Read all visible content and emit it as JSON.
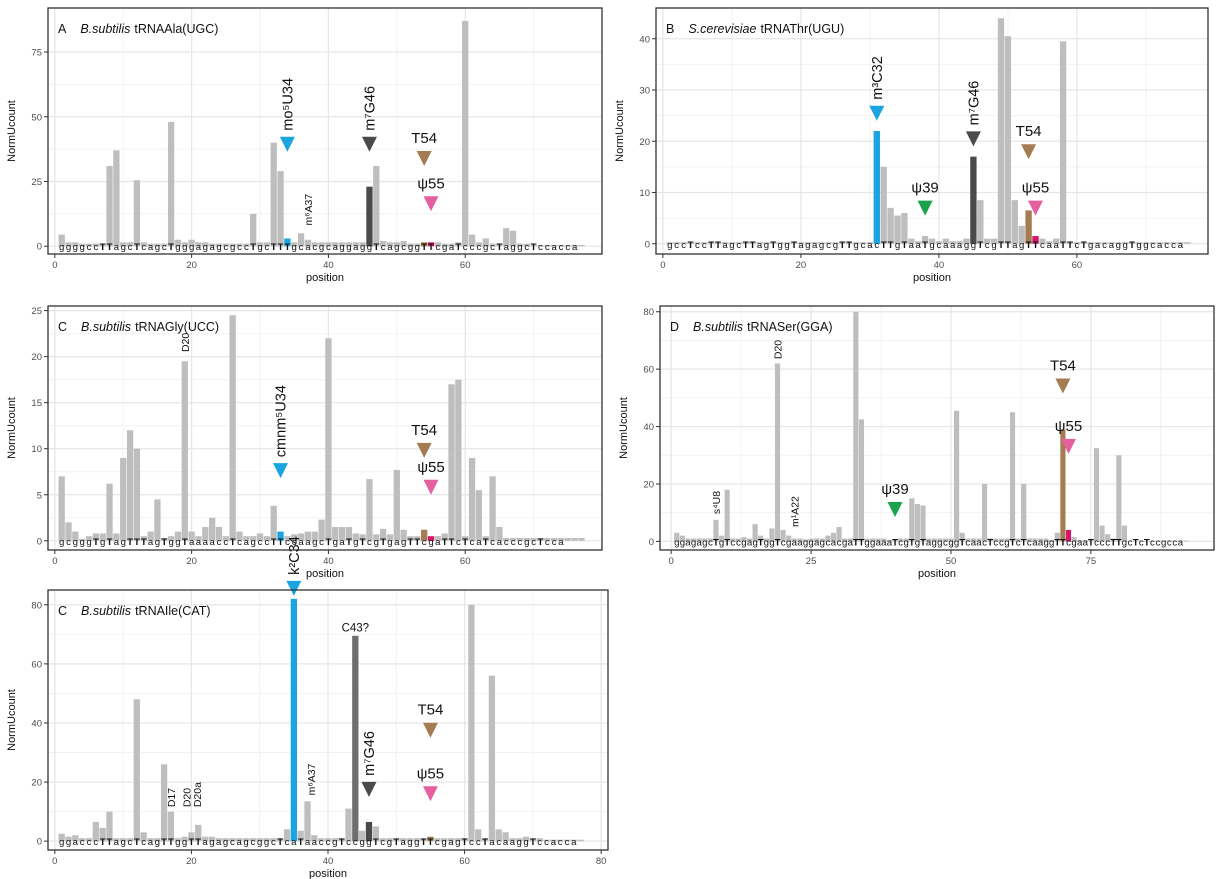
{
  "colors": {
    "bar": "#bebebe",
    "panel_border": "#333333",
    "grid_major": "#e6e6e6",
    "grid_minor": "#f2f2f2",
    "axis_text": "#4d4d4d",
    "blue": "#1aa5e0",
    "dark": "#4a4a4a",
    "mid_dark": "#6e6e6e",
    "brown": "#a57c52",
    "pink": "#e5609f",
    "magenta": "#d4156b",
    "green": "#1aa34a"
  },
  "chart_data": [
    {
      "type": "bar",
      "panel_letter": "A",
      "organism": "B.subtilis",
      "trna": "tRNAAla(UGC)",
      "xlabel": "position",
      "ylabel": "NormUcount",
      "xlim": [
        -1,
        80
      ],
      "ylim": [
        -3,
        92
      ],
      "x_ticks": [
        0,
        20,
        40,
        60
      ],
      "y_ticks": [
        0,
        25,
        50,
        75
      ],
      "x": [
        1,
        2,
        3,
        4,
        5,
        6,
        7,
        8,
        9,
        10,
        11,
        12,
        13,
        14,
        15,
        16,
        17,
        18,
        19,
        20,
        21,
        22,
        23,
        24,
        25,
        26,
        27,
        28,
        29,
        30,
        31,
        32,
        33,
        34,
        35,
        36,
        37,
        38,
        39,
        40,
        41,
        42,
        43,
        44,
        45,
        46,
        47,
        48,
        49,
        50,
        51,
        52,
        53,
        54,
        55,
        56,
        57,
        58,
        59,
        60,
        61,
        62,
        63,
        64,
        65,
        66,
        67,
        68,
        69,
        70,
        71,
        72,
        73,
        74,
        75,
        76,
        77
      ],
      "values": [
        4.5,
        1.5,
        1.5,
        1,
        1,
        1,
        1,
        31,
        37,
        1.5,
        1.5,
        25.5,
        1.5,
        1,
        1,
        1,
        48,
        2.5,
        1.5,
        2.5,
        1.5,
        1.5,
        1,
        1,
        1,
        1,
        1,
        1,
        12.5,
        1.5,
        1.5,
        40,
        29,
        3,
        1.5,
        5,
        2.5,
        1.5,
        1.5,
        1.5,
        1.5,
        1.5,
        1.5,
        1.5,
        1.5,
        23,
        31,
        2,
        1.5,
        1.5,
        2,
        1,
        1,
        1.5,
        1.5,
        1.5,
        1,
        1,
        1.5,
        87,
        4.5,
        1.5,
        3,
        1,
        1,
        7,
        6,
        1,
        1,
        0.5,
        0.5,
        0.5,
        0.5,
        0.5,
        0.5,
        0.5,
        0.5
      ],
      "highlights": [
        {
          "x": 34,
          "color": "blue"
        },
        {
          "x": 46,
          "color": "dark"
        },
        {
          "x": 54,
          "color": "brown"
        },
        {
          "x": 55,
          "color": "magenta"
        }
      ],
      "sequence": "ggggccTTagcTcagcTgggagagcgccTgcTTTgcacgcaggaggTcagcggTTcgaTcccgcTaggcTccacca",
      "annotations": [
        {
          "label": "mo⁵U34",
          "x": 34,
          "y": 36.5,
          "color": "blue",
          "rotate": true
        },
        {
          "label": "m⁷G46",
          "x": 46,
          "y": 36.5,
          "color": "dark",
          "rotate": true
        },
        {
          "label": "T54",
          "x": 54,
          "y": 31,
          "color": "brown",
          "rotate": false
        },
        {
          "label": "ψ55",
          "x": 55,
          "y": 13.5,
          "color": "pink",
          "rotate": false
        },
        {
          "label": "m⁶A37",
          "x": 37,
          "y": 8,
          "rotate": true,
          "small": true
        }
      ]
    },
    {
      "type": "bar",
      "panel_letter": "B",
      "organism": "S.cerevisiae",
      "trna": "tRNAThr(UGU)",
      "xlabel": "position",
      "ylabel": "NormUcount",
      "xlim": [
        -1,
        79
      ],
      "ylim": [
        -2,
        46
      ],
      "x_ticks": [
        0,
        20,
        40,
        60
      ],
      "y_ticks": [
        0,
        10,
        20,
        30,
        40
      ],
      "x": [
        1,
        2,
        3,
        4,
        5,
        6,
        7,
        8,
        9,
        10,
        11,
        12,
        13,
        14,
        15,
        16,
        17,
        18,
        19,
        20,
        21,
        22,
        23,
        24,
        25,
        26,
        27,
        28,
        29,
        30,
        31,
        32,
        33,
        34,
        35,
        36,
        37,
        38,
        39,
        40,
        41,
        42,
        43,
        44,
        45,
        46,
        47,
        48,
        49,
        50,
        51,
        52,
        53,
        54,
        55,
        56,
        57,
        58,
        59,
        60,
        61,
        62,
        63,
        64,
        65,
        66,
        67,
        68,
        69,
        70,
        71,
        72,
        73,
        74,
        75,
        76
      ],
      "values": [
        0.3,
        0.3,
        0.3,
        0.3,
        0.3,
        0.3,
        0.3,
        0.3,
        0.3,
        0.3,
        0.3,
        0.3,
        0.3,
        0.3,
        0.3,
        0.3,
        0.3,
        0.3,
        0.3,
        0.3,
        0.3,
        0.3,
        0.3,
        0.3,
        0.3,
        0.3,
        0.3,
        0.3,
        0.3,
        0.3,
        22,
        15,
        7,
        5.5,
        6,
        1,
        0.5,
        1.5,
        1,
        0.5,
        1,
        0.5,
        0.5,
        1,
        17,
        8.5,
        1,
        1,
        44,
        40.5,
        8.5,
        3.5,
        6.5,
        1.5,
        1,
        0.5,
        1,
        39.5,
        0.3,
        0.3,
        0.3,
        0.3,
        0.3,
        0.3,
        0.3,
        0.3,
        0.3,
        0.3,
        0.3,
        0.3,
        0.3,
        0.3,
        0.3,
        0.3,
        0.3,
        0.3
      ],
      "highlights": [
        {
          "x": 31,
          "color": "blue"
        },
        {
          "x": 45,
          "color": "dark"
        },
        {
          "x": 53,
          "color": "brown"
        },
        {
          "x": 54,
          "color": "magenta"
        }
      ],
      "sequence": "gccTccTTagcTTagTggTagagcgTTgcacTTgTaaTgcaaaggTcgTTagTTcaaTTcTgacaggTggcacca",
      "annotations": [
        {
          "label": "m³C32",
          "x": 31,
          "y": 24,
          "color": "blue",
          "rotate": true
        },
        {
          "label": "m⁷G46",
          "x": 45,
          "y": 19,
          "color": "dark",
          "rotate": true
        },
        {
          "label": "ψ39",
          "x": 38,
          "y": 5.5,
          "color": "green",
          "rotate": false
        },
        {
          "label": "T54",
          "x": 53,
          "y": 16.5,
          "color": "brown",
          "rotate": false
        },
        {
          "label": "ψ55",
          "x": 54,
          "y": 5.5,
          "color": "pink",
          "rotate": false
        }
      ]
    },
    {
      "type": "bar",
      "panel_letter": "C",
      "organism": "B.subtilis",
      "trna": "tRNAGly(UCC)",
      "xlabel": "position",
      "ylabel": "NormUcount",
      "xlim": [
        -1,
        80
      ],
      "ylim": [
        -1,
        25.5
      ],
      "x_ticks": [
        0,
        20,
        40,
        60
      ],
      "y_ticks": [
        0,
        5,
        10,
        15,
        20,
        25
      ],
      "x": [
        1,
        2,
        3,
        4,
        5,
        6,
        7,
        8,
        9,
        10,
        11,
        12,
        13,
        14,
        15,
        16,
        17,
        18,
        19,
        20,
        21,
        22,
        23,
        24,
        25,
        26,
        27,
        28,
        29,
        30,
        31,
        32,
        33,
        34,
        35,
        36,
        37,
        38,
        39,
        40,
        41,
        42,
        43,
        44,
        45,
        46,
        47,
        48,
        49,
        50,
        51,
        52,
        53,
        54,
        55,
        56,
        57,
        58,
        59,
        60,
        61,
        62,
        63,
        64,
        65,
        66,
        67,
        68,
        69,
        70,
        71,
        72,
        73,
        74,
        75,
        76,
        77
      ],
      "values": [
        7,
        2,
        1,
        0.2,
        0.5,
        0.8,
        0.8,
        6.2,
        0.8,
        9,
        12,
        10,
        0.5,
        1,
        4.5,
        0.3,
        0.5,
        1,
        19.5,
        1,
        0.5,
        1.5,
        2.5,
        1.5,
        0.5,
        24.5,
        1,
        0.5,
        0.5,
        0.8,
        0.5,
        3.8,
        1,
        0.5,
        0.7,
        0.8,
        1,
        1,
        2.3,
        22,
        1.5,
        1.5,
        1.5,
        0.8,
        0.7,
        6.7,
        0.7,
        1.3,
        0.7,
        7.7,
        1.2,
        0.5,
        0.5,
        1.2,
        0.5,
        0.5,
        0.8,
        17,
        17.5,
        0.5,
        9,
        5.5,
        0.5,
        7,
        1.5,
        0.3,
        0.3,
        0.3,
        0.3,
        0.3,
        0.3,
        0.3,
        0.3,
        0.3,
        0.3,
        0.3,
        0.3
      ],
      "highlights": [
        {
          "x": 33,
          "color": "blue"
        },
        {
          "x": 54,
          "color": "brown"
        },
        {
          "x": 55,
          "color": "magenta"
        }
      ],
      "sequence": "gcgggTgTagTTTagTggTaaaaccTcagccTTccaagcTgaTgTcgTgagTTcgaTTcTcaTcacccgcTcca",
      "annotations": [
        {
          "label": "D20",
          "x": 19,
          "y": 20.5,
          "rotate": true,
          "small": true
        },
        {
          "label": "cmnm⁵U34",
          "x": 33,
          "y": 6.8,
          "color": "blue",
          "rotate": true
        },
        {
          "label": "T54",
          "x": 54,
          "y": 9,
          "color": "brown",
          "rotate": false
        },
        {
          "label": "ψ55",
          "x": 55,
          "y": 5,
          "color": "pink",
          "rotate": false
        }
      ]
    },
    {
      "type": "bar",
      "panel_letter": "D",
      "organism": "B.subtilis",
      "trna": "tRNASer(GGA)",
      "xlabel": "position",
      "ylabel": "NormUcount",
      "xlim": [
        -2,
        97
      ],
      "ylim": [
        -3,
        82
      ],
      "x_ticks": [
        0,
        25,
        50,
        75
      ],
      "y_ticks": [
        0,
        20,
        40,
        60,
        80
      ],
      "x": [
        1,
        2,
        3,
        4,
        5,
        6,
        7,
        8,
        9,
        10,
        11,
        12,
        13,
        14,
        15,
        16,
        17,
        18,
        19,
        20,
        21,
        22,
        23,
        24,
        25,
        26,
        27,
        28,
        29,
        30,
        31,
        32,
        33,
        34,
        35,
        36,
        37,
        38,
        39,
        40,
        41,
        42,
        43,
        44,
        45,
        46,
        47,
        48,
        49,
        50,
        51,
        52,
        53,
        54,
        55,
        56,
        57,
        58,
        59,
        60,
        61,
        62,
        63,
        64,
        65,
        66,
        67,
        68,
        69,
        70,
        71,
        72,
        73,
        74,
        75,
        76,
        77,
        78,
        79,
        80,
        81,
        82,
        83,
        84,
        85,
        86,
        87,
        88,
        89,
        90,
        91,
        92
      ],
      "values": [
        3,
        2,
        1,
        1,
        1,
        1,
        1,
        7.5,
        2,
        18,
        1,
        1,
        1.5,
        1,
        6,
        2,
        1,
        4.5,
        62,
        4,
        2,
        1,
        1,
        0.7,
        1,
        1,
        1,
        2,
        3,
        5,
        1,
        1,
        80,
        42.5,
        1,
        1,
        1,
        1,
        0.5,
        0.5,
        1,
        1,
        15,
        13,
        12.5,
        1,
        1,
        1,
        1,
        1,
        45.5,
        3,
        1,
        1,
        1,
        20,
        1,
        1,
        1,
        1,
        45,
        1,
        20,
        1,
        1,
        1,
        1,
        0.5,
        3,
        39,
        4,
        1.5,
        0.5,
        0.5,
        0.5,
        32.5,
        5.5,
        2.5,
        1,
        30,
        5.5,
        0.3,
        0.3,
        0.3,
        0.3,
        0.3,
        0.3,
        0.3,
        0.3,
        0.3,
        0.3,
        0.3
      ],
      "highlights": [
        {
          "x": 70,
          "color": "brown"
        },
        {
          "x": 71,
          "color": "magenta"
        }
      ],
      "sequence": "ggagagcTgTccgagTggTcgaaggagcacgaTTggaaaTcgTgTaggcggTcaacTccgTcTcaaggTTcgaaTcccTTgcTcTccgcca",
      "annotations": [
        {
          "label": "s⁴U8",
          "x": 8,
          "y": 9.5,
          "rotate": true,
          "small": true
        },
        {
          "label": "D20",
          "x": 19,
          "y": 63.5,
          "rotate": true,
          "small": true
        },
        {
          "label": "m¹A22",
          "x": 22,
          "y": 5,
          "rotate": true,
          "small": true
        },
        {
          "label": "ψ39",
          "x": 40,
          "y": 8.5,
          "color": "green",
          "rotate": false
        },
        {
          "label": "T54",
          "x": 70,
          "y": 51.5,
          "color": "brown",
          "rotate": false
        },
        {
          "label": "ψ55",
          "x": 71,
          "y": 30.5,
          "color": "pink",
          "rotate": false
        }
      ]
    },
    {
      "type": "bar",
      "panel_letter": "C",
      "organism": "B.subtilis",
      "trna": "tRNAIle(CAT)",
      "xlabel": "position",
      "ylabel": "NormUcount",
      "xlim": [
        -1,
        81
      ],
      "ylim": [
        -3,
        85
      ],
      "x_ticks": [
        0,
        20,
        40,
        60,
        80
      ],
      "y_ticks": [
        0,
        20,
        40,
        60,
        80
      ],
      "x": [
        1,
        2,
        3,
        4,
        5,
        6,
        7,
        8,
        9,
        10,
        11,
        12,
        13,
        14,
        15,
        16,
        17,
        18,
        19,
        20,
        21,
        22,
        23,
        24,
        25,
        26,
        27,
        28,
        29,
        30,
        31,
        32,
        33,
        34,
        35,
        36,
        37,
        38,
        39,
        40,
        41,
        42,
        43,
        44,
        45,
        46,
        47,
        48,
        49,
        50,
        51,
        52,
        53,
        54,
        55,
        56,
        57,
        58,
        59,
        60,
        61,
        62,
        63,
        64,
        65,
        66,
        67,
        68,
        69,
        70,
        71,
        72,
        73,
        74,
        75,
        76,
        77
      ],
      "values": [
        2.5,
        1.5,
        2,
        1,
        1,
        6.5,
        4.5,
        10,
        1,
        1,
        1,
        48,
        3,
        1,
        1,
        26,
        10,
        1,
        1.5,
        3,
        5.5,
        1.5,
        1.5,
        1,
        1,
        1,
        1,
        1,
        1,
        1,
        1,
        1,
        1,
        4,
        82,
        3.5,
        13.5,
        2,
        1,
        1,
        1,
        1,
        11,
        69.5,
        3.5,
        6.5,
        5,
        1,
        1,
        1,
        1,
        1,
        1,
        1,
        1.5,
        1,
        1,
        1,
        1,
        1,
        80,
        4,
        1,
        56,
        4,
        3,
        1,
        1,
        1.5,
        1,
        1,
        0.5,
        0.5,
        0.5,
        0.5,
        0.5,
        0.5
      ],
      "highlights": [
        {
          "x": 35,
          "color": "blue"
        },
        {
          "x": 44,
          "color": "mid_dark"
        },
        {
          "x": 46,
          "color": "dark"
        },
        {
          "x": 55,
          "color": "brown"
        }
      ],
      "sequence": "ggacccTTagcTcagTTggTTagagcagcggcTcaTaaccgTccggTcgTaggTTcgagTccTacaaggTccacca",
      "annotations": [
        {
          "label": "k²C34",
          "x": 35,
          "y": 83,
          "color": "blue",
          "rotate": true
        },
        {
          "label": "C43?",
          "x": 44,
          "y": 71,
          "rotate": false,
          "small": true
        },
        {
          "label": "m⁶A37",
          "x": 37.5,
          "y": 15.5,
          "rotate": true,
          "small": true
        },
        {
          "label": "D17",
          "x": 17,
          "y": 11.5,
          "rotate": true,
          "small": true
        },
        {
          "label": "D20",
          "x": 19.3,
          "y": 11.5,
          "rotate": true,
          "small": true
        },
        {
          "label": "D20a",
          "x": 20.8,
          "y": 11.5,
          "rotate": true,
          "small": true
        },
        {
          "label": "m⁷G46",
          "x": 46,
          "y": 15,
          "color": "dark",
          "rotate": true
        },
        {
          "label": "T54",
          "x": 55,
          "y": 35,
          "color": "brown",
          "rotate": false
        },
        {
          "label": "ψ55",
          "x": 55,
          "y": 13.5,
          "color": "pink",
          "rotate": false
        }
      ]
    }
  ]
}
